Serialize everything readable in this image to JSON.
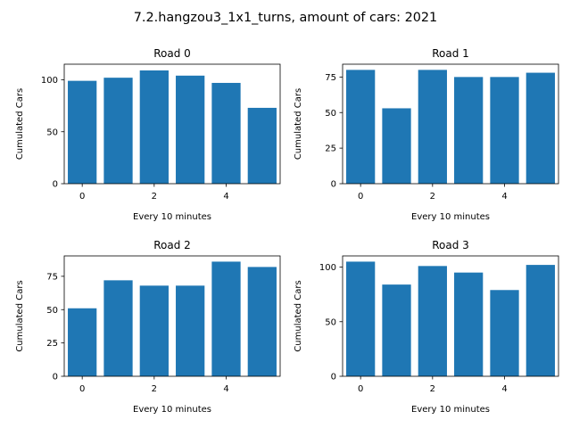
{
  "figure_title": "7.2.hangzou3_1x1_turns, amount of cars: 2021",
  "colors": {
    "bar": "#1f77b4",
    "axis": "#000000",
    "background": "#ffffff"
  },
  "chart_data": [
    {
      "type": "bar",
      "title": "Road 0",
      "xlabel": "Every 10 minutes",
      "ylabel": "Cumulated Cars",
      "categories": [
        0,
        1,
        2,
        3,
        4,
        5
      ],
      "values": [
        99,
        102,
        109,
        104,
        97,
        73
      ],
      "xlim": [
        -0.5,
        5.5
      ],
      "ylim": [
        0,
        115
      ],
      "xticks": [
        0,
        2,
        4
      ],
      "yticks": [
        0,
        50,
        100
      ]
    },
    {
      "type": "bar",
      "title": "Road 1",
      "xlabel": "Every 10 minutes",
      "ylabel": "Cumulated Cars",
      "categories": [
        0,
        1,
        2,
        3,
        4,
        5
      ],
      "values": [
        80,
        53,
        80,
        75,
        75,
        78
      ],
      "xlim": [
        -0.5,
        5.5
      ],
      "ylim": [
        0,
        84
      ],
      "xticks": [
        0,
        2,
        4
      ],
      "yticks": [
        0,
        25,
        50,
        75
      ]
    },
    {
      "type": "bar",
      "title": "Road 2",
      "xlabel": "Every 10 minutes",
      "ylabel": "Cumulated Cars",
      "categories": [
        0,
        1,
        2,
        3,
        4,
        5
      ],
      "values": [
        51,
        72,
        68,
        68,
        86,
        82
      ],
      "xlim": [
        -0.5,
        5.5
      ],
      "ylim": [
        0,
        90.3
      ],
      "xticks": [
        0,
        2,
        4
      ],
      "yticks": [
        0,
        25,
        50,
        75
      ]
    },
    {
      "type": "bar",
      "title": "Road 3",
      "xlabel": "Every 10 minutes",
      "ylabel": "Cumulated Cars",
      "categories": [
        0,
        1,
        2,
        3,
        4,
        5
      ],
      "values": [
        105,
        84,
        101,
        95,
        79,
        102
      ],
      "xlim": [
        -0.5,
        5.5
      ],
      "ylim": [
        0,
        110.25
      ],
      "xticks": [
        0,
        2,
        4
      ],
      "yticks": [
        0,
        50,
        100
      ]
    }
  ]
}
